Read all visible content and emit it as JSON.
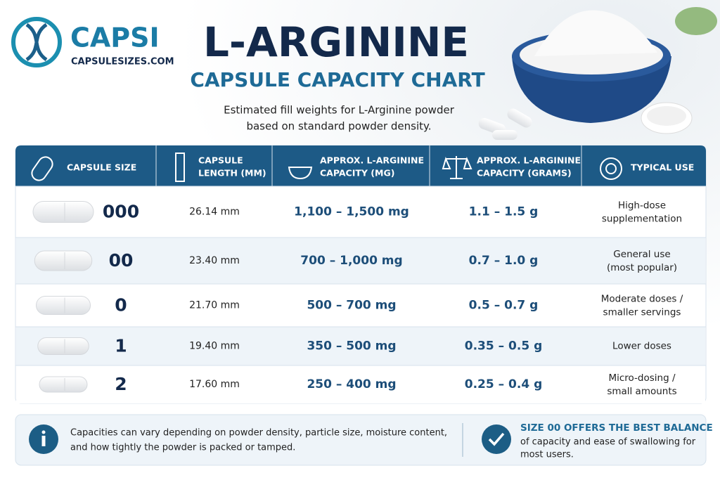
{
  "brand": {
    "name": "CAPSI",
    "site": "CAPSULESIZES.COM"
  },
  "header": {
    "title": "L-ARGININE",
    "subtitle": "CAPSULE CAPACITY CHART",
    "description": [
      "Estimated fill weights for L-Arginine powder",
      "based on standard powder density."
    ]
  },
  "table": {
    "columns": [
      [
        "CAPSULE SIZE"
      ],
      [
        "CAPSULE",
        "LENGTH (MM)"
      ],
      [
        "APPROX. L-ARGININE",
        "CAPACITY (MG)"
      ],
      [
        "APPROX. L-ARGININE",
        "CAPACITY (GRAMS)"
      ],
      [
        "TYPICAL USE"
      ]
    ],
    "rows": [
      [
        "000",
        "26.14 mm",
        "1,100 – 1,500 mg",
        "1.1 – 1.5 g",
        [
          "High-dose",
          "supplementation"
        ]
      ],
      [
        "00",
        "23.40 mm",
        "700 – 1,000 mg",
        "0.7 – 1.0 g",
        [
          "General use",
          "(most popular)"
        ]
      ],
      [
        "0",
        "21.70 mm",
        "500 – 700 mg",
        "0.5 – 0.7 g",
        [
          "Moderate doses /",
          "smaller servings"
        ]
      ],
      [
        "1",
        "19.40 mm",
        "350 – 500 mg",
        "0.35 – 0.5 g",
        [
          "Lower doses"
        ]
      ],
      [
        "2",
        "17.60 mm",
        "250 – 400 mg",
        "0.25 – 0.4 g",
        [
          "Micro-dosing /",
          "small amounts"
        ]
      ]
    ]
  },
  "notes": {
    "info": [
      "Capacities can vary depending on powder density, particle size, moisture content,",
      "and how tightly the powder is packed or tamped."
    ],
    "tip_title": "SIZE 00 OFFERS THE BEST BALANCE",
    "tip": [
      "of capacity and ease of swallowing for",
      "most users."
    ]
  }
}
